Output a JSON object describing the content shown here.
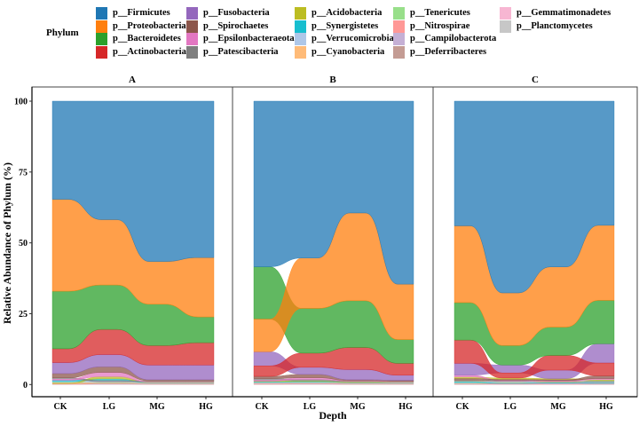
{
  "legend": {
    "title": "Phylum"
  },
  "chart_data": {
    "type": "area",
    "subtype": "alluvial",
    "title": "",
    "xlabel": "Depth",
    "ylabel": "Relative Abundance of Phylum (%)",
    "ylim": [
      0,
      100
    ],
    "yticks": [
      "0",
      "25",
      "50",
      "75",
      "100"
    ],
    "yticks_values": [
      0,
      25,
      50,
      75,
      100
    ],
    "categories": [
      "CK",
      "LG",
      "MG",
      "HG"
    ],
    "legend_position": "top",
    "phyla": [
      {
        "name": "p__Firmicutes",
        "color": "#1f77b4"
      },
      {
        "name": "p__Proteobacteria",
        "color": "#ff7f0e"
      },
      {
        "name": "p__Bacteroidetes",
        "color": "#2ca02c"
      },
      {
        "name": "p__Actinobacteria",
        "color": "#d62728"
      },
      {
        "name": "p__Fusobacteria",
        "color": "#9467bd"
      },
      {
        "name": "p__Spirochaetes",
        "color": "#8c564b"
      },
      {
        "name": "p__Epsilonbacteraeota",
        "color": "#e377c2"
      },
      {
        "name": "p__Patescibacteria",
        "color": "#7f7f7f"
      },
      {
        "name": "p__Acidobacteria",
        "color": "#bcbd22"
      },
      {
        "name": "p__Synergistetes",
        "color": "#17becf"
      },
      {
        "name": "p__Verrucomicrobia",
        "color": "#aec7e8"
      },
      {
        "name": "p__Cyanobacteria",
        "color": "#ffbb78"
      },
      {
        "name": "p__Tenericutes",
        "color": "#98df8a"
      },
      {
        "name": "p__Nitrospirae",
        "color": "#ff9896"
      },
      {
        "name": "p__Campilobacterota",
        "color": "#c5b0d5"
      },
      {
        "name": "p__Deferribacteres",
        "color": "#c49c94"
      },
      {
        "name": "p__Gemmatimonadetes",
        "color": "#f7b6d2"
      },
      {
        "name": "p__Planctomycetes",
        "color": "#c7c7c7"
      }
    ],
    "panels": [
      {
        "label": "A",
        "values": [
          [
            34.8,
            41.9,
            56.7,
            55.3
          ],
          [
            32.6,
            23.1,
            15.1,
            21.0
          ],
          [
            20.4,
            15.7,
            14.6,
            9.1
          ],
          [
            4.9,
            8.9,
            6.9,
            7.9
          ],
          [
            3.9,
            4.3,
            5.2,
            5.2
          ],
          [
            1.5,
            2.0,
            0.4,
            0.4
          ],
          [
            0.4,
            1.5,
            0.1,
            0.1
          ],
          [
            0.5,
            0.4,
            0.3,
            0.3
          ],
          [
            0.1,
            0.8,
            0.1,
            0.1
          ],
          [
            0.4,
            0.6,
            0.1,
            0.1
          ],
          [
            0.2,
            0.2,
            0.1,
            0.1
          ],
          [
            0.1,
            0.2,
            0.1,
            0.1
          ],
          [
            0.2,
            0.1,
            0.1,
            0.1
          ],
          [
            0.1,
            0.1,
            0.1,
            0.1
          ],
          [
            0.2,
            0.1,
            0.1,
            0.1
          ],
          [
            0.1,
            0.1,
            0.1,
            0.1
          ],
          [
            0.05,
            0.1,
            0.05,
            0.05
          ],
          [
            0.05,
            0.1,
            0.05,
            0.05
          ]
        ]
      },
      {
        "label": "B",
        "values": [
          [
            58.5,
            55.4,
            39.5,
            64.7
          ],
          [
            11.5,
            17.8,
            31.0,
            19.6
          ],
          [
            18.5,
            15.8,
            16.5,
            8.4
          ],
          [
            3.7,
            5.0,
            7.8,
            4.2
          ],
          [
            5.0,
            2.5,
            3.6,
            1.8
          ],
          [
            0.8,
            1.2,
            0.3,
            0.3
          ],
          [
            0.3,
            0.6,
            0.2,
            0.1
          ],
          [
            0.6,
            0.5,
            0.2,
            0.2
          ],
          [
            0.2,
            0.2,
            0.2,
            0.1
          ],
          [
            0.2,
            0.2,
            0.1,
            0.1
          ],
          [
            0.1,
            0.1,
            0.1,
            0.1
          ],
          [
            0.1,
            0.1,
            0.1,
            0.1
          ],
          [
            0.2,
            0.2,
            0.1,
            0.1
          ],
          [
            0.1,
            0.1,
            0.1,
            0.1
          ],
          [
            0.1,
            0.1,
            0.1,
            0.1
          ],
          [
            0.1,
            0.1,
            0.1,
            0.1
          ],
          [
            0.05,
            0.1,
            0.05,
            0.05
          ],
          [
            0.05,
            0.1,
            0.05,
            0.05
          ]
        ]
      },
      {
        "label": "C",
        "values": [
          [
            44.0,
            67.8,
            58.6,
            43.8
          ],
          [
            27.1,
            18.6,
            21.3,
            26.5
          ],
          [
            13.2,
            6.9,
            10.0,
            15.3
          ],
          [
            8.2,
            1.8,
            5.2,
            4.5
          ],
          [
            4.2,
            2.8,
            3.0,
            6.8
          ],
          [
            0.5,
            0.3,
            0.3,
            1.0
          ],
          [
            0.6,
            0.2,
            0.2,
            0.4
          ],
          [
            0.3,
            0.2,
            0.2,
            0.2
          ],
          [
            0.6,
            0.5,
            0.4,
            0.3
          ],
          [
            0.2,
            0.1,
            0.1,
            0.1
          ],
          [
            0.2,
            0.2,
            0.1,
            0.2
          ],
          [
            0.3,
            0.2,
            0.2,
            0.2
          ],
          [
            0.2,
            0.2,
            0.2,
            0.3
          ],
          [
            0.1,
            0.1,
            0.1,
            0.1
          ],
          [
            0.1,
            0.1,
            0.1,
            0.1
          ],
          [
            0.1,
            0.1,
            0.1,
            0.1
          ],
          [
            0.05,
            0.05,
            0.05,
            0.05
          ],
          [
            0.05,
            0.05,
            0.05,
            0.05
          ]
        ]
      }
    ]
  }
}
